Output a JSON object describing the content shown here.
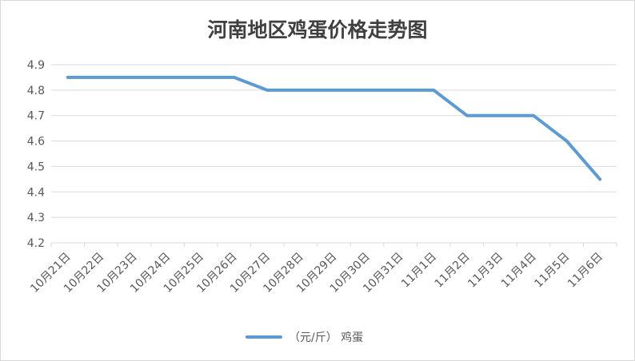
{
  "chart_data": {
    "type": "line",
    "title": "河南地区鸡蛋价格走势图",
    "xlabel": "",
    "ylabel": "",
    "categories": [
      "10月21日",
      "10月22日",
      "10月23日",
      "10月24日",
      "10月25日",
      "10月26日",
      "10月27日",
      "10月28日",
      "10月29日",
      "10月30日",
      "10月31日",
      "11月1日",
      "11月2日",
      "11月3日",
      "11月4日",
      "11月5日",
      "11月6日"
    ],
    "series": [
      {
        "name": "（元/斤） 鸡蛋",
        "values": [
          4.85,
          4.85,
          4.85,
          4.85,
          4.85,
          4.85,
          4.8,
          4.8,
          4.8,
          4.8,
          4.8,
          4.8,
          4.7,
          4.7,
          4.7,
          4.6,
          4.45
        ]
      }
    ],
    "ylim": [
      4.2,
      4.9
    ],
    "yticks": [
      "4.2",
      "4.3",
      "4.4",
      "4.5",
      "4.6",
      "4.7",
      "4.8",
      "4.9"
    ],
    "grid": true,
    "legend_position": "bottom",
    "colors": {
      "line": "#5b9bd5",
      "grid": "#d9d9d9",
      "text": "#595959",
      "title": "#404040"
    }
  }
}
